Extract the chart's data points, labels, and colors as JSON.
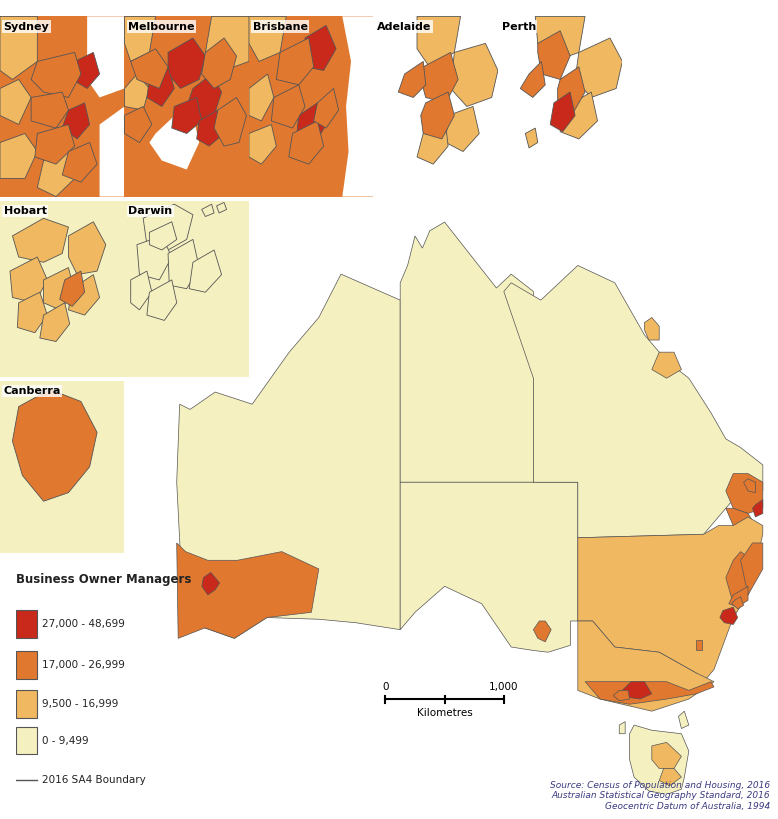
{
  "colors": {
    "cat1": "#c8291a",
    "cat2": "#e07830",
    "cat3": "#f0b860",
    "cat4": "#f5f0c0",
    "boundary": "#555555",
    "background": "#ffffff"
  },
  "legend": {
    "title": "Business Owner Managers",
    "categories": [
      {
        "label": "27,000 - 48,699",
        "color": "#c8291a"
      },
      {
        "label": "17,000 - 26,999",
        "color": "#e07830"
      },
      {
        "label": "9,500 - 16,999",
        "color": "#f0b860"
      },
      {
        "label": "0 - 9,499",
        "color": "#f5f0c0"
      }
    ],
    "boundary_label": "2016 SA4 Boundary"
  },
  "source_text": "Source: Census of Population and Housing, 2016\nAustralian Statistical Geography Standard, 2016\nGeocentric Datum of Australia, 1994",
  "text_color": "#3a3a80"
}
